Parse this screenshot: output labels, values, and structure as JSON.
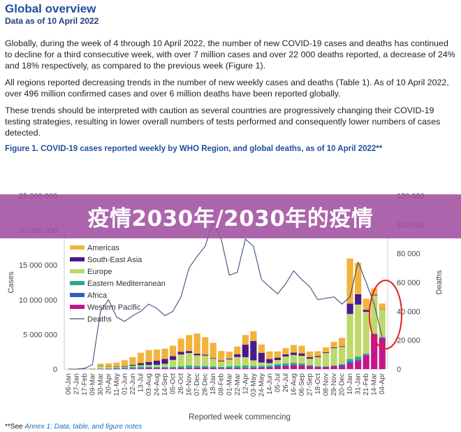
{
  "header": {
    "title": "Global overview",
    "subtitle": "Data as of 10 April 2022"
  },
  "paragraphs": [
    "Globally, during the week of 4 through 10 April 2022, the number of new COVID-19 cases and deaths has continued to decline for a third consecutive week, with over 7 million cases and over 22 000 deaths reported, a decrease of 24% and 18% respectively, as compared to the previous week (Figure 1).",
    "All regions reported decreasing trends in the number of new weekly cases and deaths (Table 1). As of 10 April 2022, over 496 million confirmed cases and over 6 million deaths have been reported globally.",
    "These trends should be interpreted with caution as several countries are progressively changing their COVID-19 testing strategies, resulting in lower overall numbers of tests performed and consequently lower numbers of cases detected."
  ],
  "figure_caption": "Figure 1. COVID-19 cases reported weekly by WHO Region, and global deaths, as of 10 April 2022**",
  "banner": {
    "text": "疫情2030年/2030年的疫情",
    "color": "#a050a0"
  },
  "footnote": {
    "prefix": "**See ",
    "link": "Annex 1: Data, table, and figure notes"
  },
  "chart_data": {
    "type": "bar",
    "stacked": true,
    "xlabel": "Reported week commencing",
    "ylabel": "Cases",
    "y2label": "Deaths",
    "ylim": [
      0,
      25000000
    ],
    "y2lim": [
      0,
      120000
    ],
    "yticks": [
      "0",
      "5 000 000",
      "10 000 000",
      "15 000 000",
      "20 000 000",
      "25 000 000"
    ],
    "y2ticks": [
      "0",
      "20 000",
      "40 000",
      "60 000",
      "80 000",
      "100 000",
      "120 000"
    ],
    "legend_position": "top-left",
    "categories": [
      "06-Jan",
      "27-Jan",
      "17-Feb",
      "09-Mar",
      "30-Mar",
      "20-Apr",
      "11-May",
      "01-Jun",
      "22-Jun",
      "13-Jul",
      "03-Aug",
      "24-Aug",
      "14-Sep",
      "05-Oct",
      "26-Oct",
      "16-Nov",
      "07-Dec",
      "28-Dec",
      "18-Jan",
      "08-Feb",
      "01-Mar",
      "22-Mar",
      "12-Apr",
      "03-May",
      "24-May",
      "14-Jun",
      "05-Jul",
      "26-Jul",
      "16-Aug",
      "06-Sep",
      "27-Sep",
      "18-Oct",
      "08-Nov",
      "29-Nov",
      "20-Dec",
      "10-Jan",
      "31-Jan",
      "21-Feb",
      "14-Mar",
      "04-Apr"
    ],
    "series": [
      {
        "name": "Western Pacific",
        "color": "#c4168c",
        "values": [
          0,
          10000,
          30000,
          20000,
          20000,
          20000,
          20000,
          30000,
          40000,
          60000,
          100000,
          120000,
          100000,
          90000,
          100000,
          120000,
          150000,
          140000,
          120000,
          90000,
          100000,
          100000,
          120000,
          170000,
          200000,
          200000,
          300000,
          400000,
          550000,
          500000,
          400000,
          300000,
          300000,
          400000,
          400000,
          800000,
          1200000,
          2000000,
          5000000,
          4500000
        ]
      },
      {
        "name": "Africa",
        "color": "#2e5fc4",
        "values": [
          0,
          0,
          0,
          0,
          10000,
          20000,
          30000,
          50000,
          80000,
          120000,
          100000,
          70000,
          60000,
          50000,
          50000,
          70000,
          80000,
          150000,
          120000,
          60000,
          50000,
          50000,
          50000,
          40000,
          50000,
          100000,
          150000,
          120000,
          80000,
          60000,
          40000,
          30000,
          20000,
          50000,
          200000,
          250000,
          100000,
          50000,
          30000,
          20000
        ]
      },
      {
        "name": "Eastern Mediterranean",
        "color": "#2fa886",
        "values": [
          0,
          0,
          0,
          10000,
          30000,
          50000,
          100000,
          150000,
          200000,
          180000,
          140000,
          120000,
          150000,
          180000,
          250000,
          320000,
          250000,
          150000,
          150000,
          160000,
          250000,
          300000,
          350000,
          250000,
          200000,
          200000,
          250000,
          300000,
          300000,
          250000,
          150000,
          100000,
          100000,
          80000,
          100000,
          400000,
          500000,
          200000,
          100000,
          80000
        ]
      },
      {
        "name": "Europe",
        "color": "#bfd86a",
        "values": [
          0,
          0,
          0,
          50000,
          450000,
          300000,
          150000,
          100000,
          150000,
          200000,
          250000,
          300000,
          450000,
          1000000,
          1700000,
          1800000,
          1500000,
          1500000,
          1100000,
          800000,
          1000000,
          1300000,
          1200000,
          800000,
          500000,
          350000,
          600000,
          1000000,
          1100000,
          1100000,
          900000,
          1300000,
          1900000,
          2500000,
          2500000,
          6500000,
          7500000,
          6000000,
          5500000,
          4000000
        ]
      },
      {
        "name": "South-East Asia",
        "color": "#4a1a8c",
        "values": [
          0,
          0,
          0,
          0,
          10000,
          30000,
          50000,
          100000,
          150000,
          300000,
          450000,
          600000,
          700000,
          550000,
          400000,
          300000,
          250000,
          150000,
          100000,
          100000,
          120000,
          400000,
          1800000,
          2800000,
          1400000,
          600000,
          350000,
          300000,
          350000,
          350000,
          250000,
          150000,
          120000,
          100000,
          100000,
          1500000,
          1500000,
          300000,
          100000,
          50000
        ]
      },
      {
        "name": "Americas",
        "color": "#f2b33d",
        "values": [
          0,
          0,
          0,
          10000,
          250000,
          400000,
          600000,
          850000,
          1100000,
          1500000,
          1700000,
          1600000,
          1500000,
          1500000,
          1900000,
          2300000,
          2900000,
          2500000,
          2200000,
          1400000,
          1000000,
          1100000,
          1400000,
          1400000,
          1200000,
          1100000,
          900000,
          900000,
          1100000,
          1100000,
          800000,
          700000,
          700000,
          800000,
          1200000,
          6500000,
          4500000,
          1600000,
          900000,
          800000
        ]
      }
    ],
    "legend_order": [
      "Americas",
      "South-East Asia",
      "Europe",
      "Eastern Mediterranean",
      "Africa",
      "Western Pacific",
      "Deaths"
    ],
    "deaths": {
      "name": "Deaths",
      "color": "#3a4f7a",
      "values": [
        0,
        0,
        500,
        3000,
        40000,
        48000,
        36000,
        33000,
        37000,
        40000,
        45000,
        42000,
        37000,
        40000,
        50000,
        70000,
        78000,
        85000,
        102000,
        90000,
        65000,
        67000,
        90000,
        85000,
        62000,
        57000,
        52000,
        59000,
        68000,
        62000,
        57000,
        48000,
        49000,
        50000,
        45000,
        50000,
        74000,
        60000,
        45000,
        22000
      ]
    },
    "annotation": {
      "type": "red-ellipse",
      "color": "#e02020"
    }
  }
}
